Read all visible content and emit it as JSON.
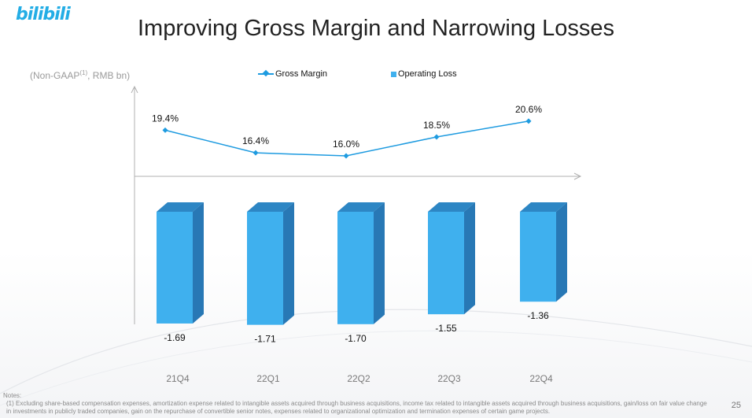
{
  "logo": {
    "text": "bilibili"
  },
  "slide": {
    "title": "Improving Gross Margin and Narrowing Losses",
    "unit_label": "(Non-GAAP",
    "unit_sup": "(1)",
    "unit_suffix": ", RMB bn)",
    "notes_heading": "Notes:",
    "notes_text": "(1)  Excluding share-based compensation expenses, amortization expense related to intangible assets acquired through business acquisitions, income tax related to intangible assets acquired through business acquisitions, gain/loss on fair value change in investments in publicly traded companies, gain on the repurchase of convertible senior notes, expenses related to organizational optimization and termination expenses of certain game projects.",
    "page_number": "25"
  },
  "colors": {
    "line": "#1e9be0",
    "bar_front": "#3fb0ee",
    "bar_side": "#2878b5",
    "bar_top": "#2d86c4",
    "axis": "#b0b0b0"
  },
  "chart_data": {
    "type": "bar",
    "categories": [
      "21Q4",
      "22Q1",
      "22Q2",
      "22Q3",
      "22Q4"
    ],
    "series": [
      {
        "name": "Gross Margin",
        "type": "line",
        "values": [
          19.4,
          16.4,
          16.0,
          18.5,
          20.6
        ],
        "labels": [
          "19.4%",
          "16.4%",
          "16.0%",
          "18.5%",
          "20.6%"
        ]
      },
      {
        "name": "Operating Loss",
        "type": "bar",
        "values": [
          -1.69,
          -1.71,
          -1.7,
          -1.55,
          -1.36
        ],
        "labels": [
          "-1.69",
          "-1.71",
          "-1.70",
          "-1.55",
          "-1.36"
        ]
      }
    ],
    "legend_position": "top-center",
    "grid": false
  }
}
